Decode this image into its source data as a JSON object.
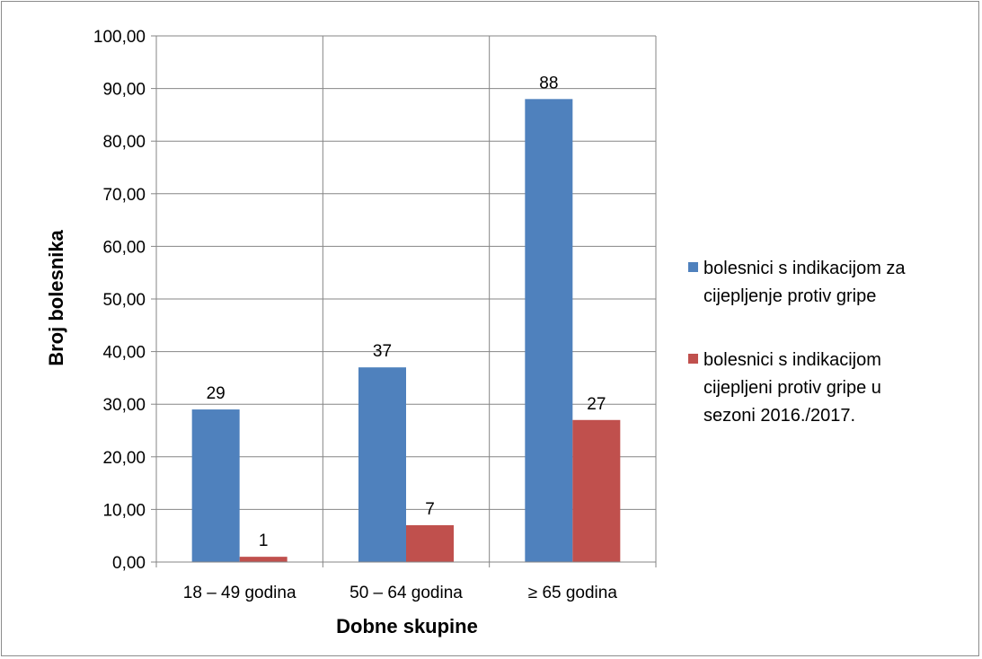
{
  "chart_data": {
    "type": "bar",
    "categories": [
      "18 – 49 godina",
      "50 – 64 godina",
      "≥ 65 godina"
    ],
    "series": [
      {
        "name": "bolesnici s indikacijom za cijepljenje protiv gripe",
        "legend_lines": [
          "bolesnici s indikacijom za",
          "cijepljenje protiv gripe"
        ],
        "values": [
          29,
          37,
          88
        ],
        "color": "#4f81bd"
      },
      {
        "name": "bolesnici  s indikacijom cijepljeni protiv gripe u sezoni 2016./2017.",
        "legend_lines": [
          "bolesnici  s indikacijom",
          "cijepljeni protiv gripe u",
          "sezoni 2016./2017."
        ],
        "values": [
          1,
          7,
          27
        ],
        "color": "#c0504d"
      }
    ],
    "data_labels": [
      [
        "29",
        "37",
        "88"
      ],
      [
        "1",
        "7",
        "27"
      ]
    ],
    "y_ticks": [
      "0,00",
      "10,00",
      "20,00",
      "30,00",
      "40,00",
      "50,00",
      "60,00",
      "70,00",
      "80,00",
      "90,00",
      "100,00"
    ],
    "ylim": [
      0,
      100
    ],
    "xlabel": "Dobne skupine",
    "ylabel": "Broj bolesnika",
    "grid": true,
    "legend_position": "right"
  }
}
